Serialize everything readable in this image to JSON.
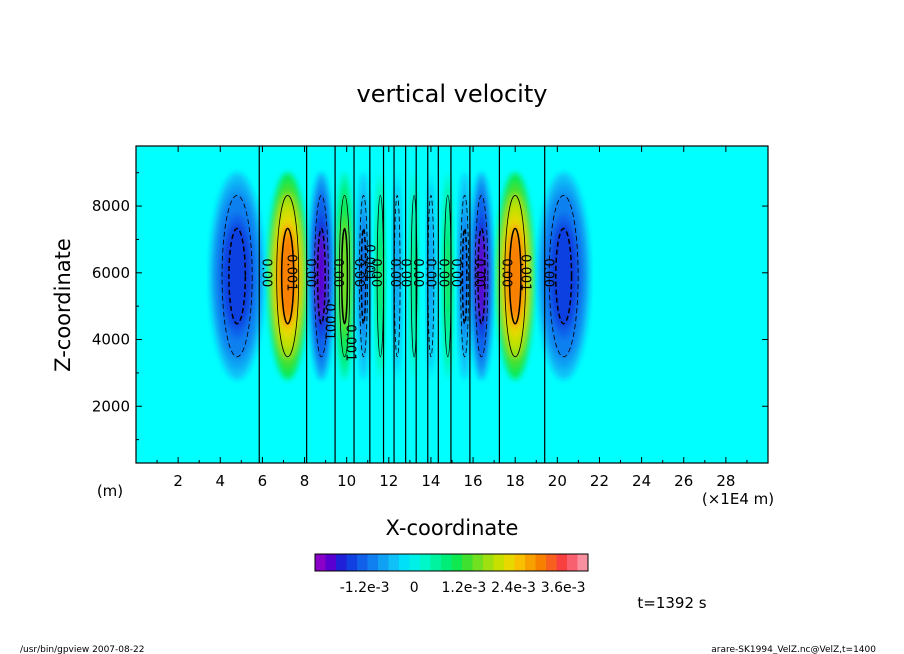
{
  "footer": {
    "left": "/usr/bin/gpview   2007-08-22",
    "right": "arare-SK1994_VelZ.nc@VelZ,t=1400"
  },
  "chart_data": {
    "type": "heatmap",
    "title": "vertical velocity",
    "xlabel": "X-coordinate",
    "ylabel": "Z-coordinate",
    "x_unit_label": "(m)",
    "x_scale_label": "(×1E4 m)",
    "xlim": [
      0,
      30
    ],
    "ylim": [
      300,
      9800
    ],
    "x_ticks": [
      2,
      4,
      6,
      8,
      10,
      12,
      14,
      16,
      18,
      20,
      22,
      24,
      26,
      28
    ],
    "y_ticks": [
      2000,
      4000,
      6000,
      8000
    ],
    "time_label": "t=1392 s",
    "colorbar": {
      "labels": [
        "-1.2e-3",
        "0",
        "1.2e-3",
        "2.4e-3",
        "3.6e-3"
      ],
      "label_values": [
        -0.0012,
        0,
        0.0012,
        0.0024,
        0.0036
      ],
      "range": [
        -0.0024,
        0.0042
      ],
      "colors": [
        "#8a00c8",
        "#5a00d0",
        "#2020d8",
        "#1040e0",
        "#1060ea",
        "#1080f0",
        "#10a0f4",
        "#10c0f8",
        "#00e0f8",
        "#00f0e8",
        "#00f8c8",
        "#00f4a0",
        "#00ee78",
        "#10e850",
        "#40e030",
        "#70e020",
        "#a0e010",
        "#c8e000",
        "#e8d800",
        "#f8c000",
        "#f8a000",
        "#f88000",
        "#f86020",
        "#f84040",
        "#f86070",
        "#f890a0"
      ]
    },
    "contour_labels": [
      {
        "text": "0.00",
        "x": 6.0,
        "y": 6000
      },
      {
        "text": "0.00",
        "x": 8.1,
        "y": 6000
      },
      {
        "text": "0.00",
        "x": 9.4,
        "y": 6000
      },
      {
        "text": "0.00",
        "x": 10.4,
        "y": 6000
      },
      {
        "text": "0.00",
        "x": 11.2,
        "y": 6000
      },
      {
        "text": "0.00",
        "x": 12.1,
        "y": 6000
      },
      {
        "text": "0.00",
        "x": 12.6,
        "y": 6000
      },
      {
        "text": "0.00",
        "x": 13.2,
        "y": 6000
      },
      {
        "text": "0.00",
        "x": 13.8,
        "y": 6000
      },
      {
        "text": "0.00",
        "x": 14.4,
        "y": 6000
      },
      {
        "text": "0.00",
        "x": 15.0,
        "y": 6000
      },
      {
        "text": "0.00",
        "x": 16.1,
        "y": 6000
      },
      {
        "text": "0.00",
        "x": 17.4,
        "y": 6000
      },
      {
        "text": "0.00",
        "x": 19.4,
        "y": 6000
      },
      {
        "text": "0.001",
        "x": 7.2,
        "y": 6000
      },
      {
        "text": "0.001",
        "x": 18.3,
        "y": 6000
      },
      {
        "text": "-0.001",
        "x": 9.0,
        "y": 4600
      },
      {
        "text": "0.001",
        "x": 10.0,
        "y": 3900
      },
      {
        "text": "0.001",
        "x": 10.9,
        "y": 6300
      }
    ],
    "cells": [
      {
        "x": 4.8,
        "amp": -0.0016,
        "w": 1.3
      },
      {
        "x": 7.2,
        "amp": 0.003,
        "w": 0.95
      },
      {
        "x": 8.8,
        "amp": -0.002,
        "w": 0.6
      },
      {
        "x": 9.9,
        "amp": 0.0016,
        "w": 0.45
      },
      {
        "x": 10.8,
        "amp": -0.0012,
        "w": 0.35
      },
      {
        "x": 11.6,
        "amp": 0.0009,
        "w": 0.28
      },
      {
        "x": 12.4,
        "amp": -0.0008,
        "w": 0.25
      },
      {
        "x": 13.2,
        "amp": 0.0007,
        "w": 0.25
      },
      {
        "x": 14.0,
        "amp": -0.0008,
        "w": 0.25
      },
      {
        "x": 14.8,
        "amp": 0.0009,
        "w": 0.3
      },
      {
        "x": 15.6,
        "amp": -0.0012,
        "w": 0.35
      },
      {
        "x": 16.4,
        "amp": -0.002,
        "w": 0.55
      },
      {
        "x": 18.0,
        "amp": 0.003,
        "w": 0.9
      },
      {
        "x": 20.3,
        "amp": -0.0016,
        "w": 1.25
      }
    ],
    "zero_lines_x": [
      5.85,
      8.1,
      9.45,
      10.35,
      11.1,
      11.75,
      12.25,
      12.8,
      13.3,
      13.85,
      14.35,
      14.95,
      15.85,
      17.25,
      19.4
    ]
  }
}
